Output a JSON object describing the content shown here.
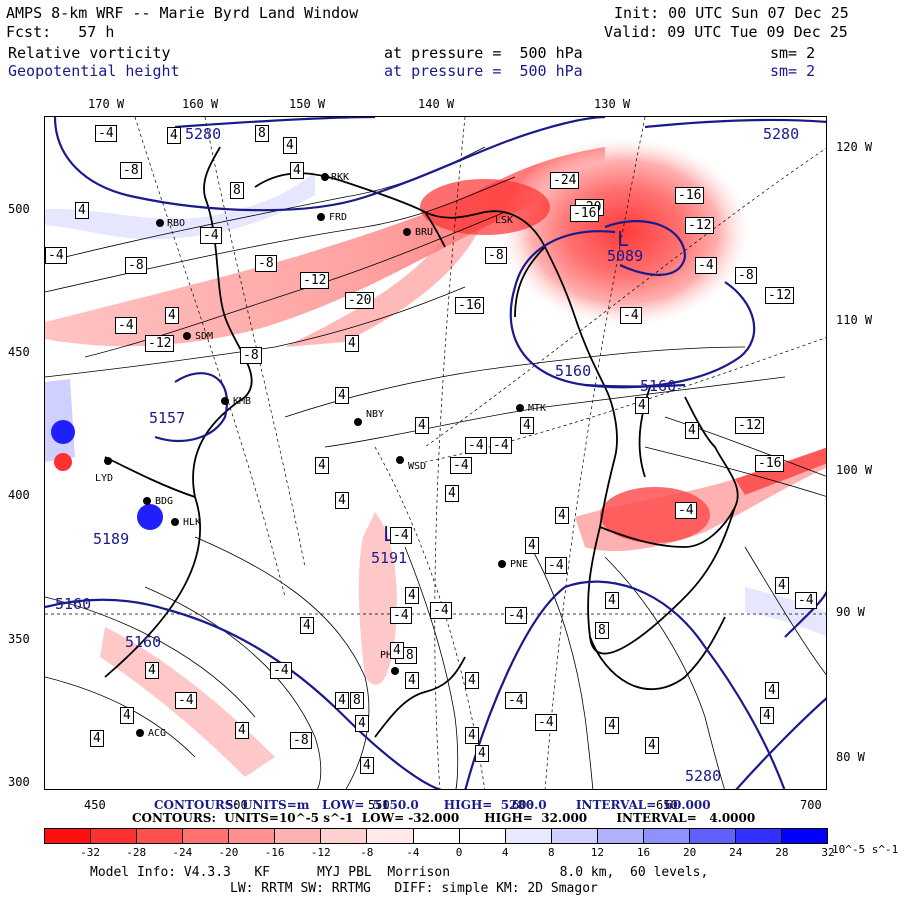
{
  "header": {
    "model_title": "AMPS 8-km WRF -- Marie Byrd Land Window",
    "init": "Init: 00 UTC Sun 07 Dec 25",
    "fcst": "Fcst:   57 h",
    "valid": "Valid: 09 UTC Tue 09 Dec 25",
    "field1": {
      "name": "Relative vorticity",
      "level": "at pressure =  500 hPa",
      "smooth": "sm= 2"
    },
    "field2": {
      "name": "Geopotential height",
      "level": "at pressure =  500 hPa",
      "smooth": "sm= 2"
    }
  },
  "axes": {
    "top_labels": [
      "170 W",
      "160 W",
      "150 W",
      "140 W",
      "130 W"
    ],
    "left_labels": [
      "500",
      "450",
      "400",
      "350",
      "300"
    ],
    "right_labels": [
      "120 W",
      "110 W",
      "100 W",
      "90 W",
      "80 W"
    ],
    "bottom_labels": [
      "450",
      "500",
      "550",
      "600",
      "650",
      "700"
    ]
  },
  "stations": [
    "RBO",
    "RKK",
    "FRD",
    "BRU",
    "LSK",
    "SDM",
    "KMB",
    "NBY",
    "MTK",
    "WSD",
    "LYD",
    "BDG",
    "HLK",
    "PNE",
    "PHI",
    "ACG"
  ],
  "map_labels": {
    "height_contours": [
      "5280",
      "5280",
      "5160",
      "5160",
      "5160",
      "5160",
      "5157",
      "5089",
      "5191",
      "5280",
      "5189"
    ],
    "lows": [
      "L",
      "L"
    ],
    "vorticity_boxes": [
      "-4",
      "4",
      "8",
      "4",
      "-8",
      "4",
      "4",
      "8",
      "4",
      "-4",
      "-8",
      "-12",
      "-4",
      "-8",
      "4",
      "-12",
      "-20",
      "-8",
      "-16",
      "-24",
      "-20",
      "-16",
      "-16",
      "-12",
      "-8",
      "-12",
      "-4",
      "-4",
      "4",
      "-8",
      "4",
      "4",
      "-4",
      "-4",
      "-4",
      "4",
      "4",
      "4",
      "-4",
      "-12",
      "-16",
      "4",
      "4",
      "-4",
      "4",
      "-4",
      "4",
      "-4",
      "-4",
      "4",
      "4",
      "8",
      "4",
      "-4",
      "4",
      "-4",
      "-8",
      "4",
      "4",
      "-4",
      "4",
      "4",
      "4",
      "4",
      "-4",
      "4",
      "4",
      "4",
      "-4",
      "-4",
      "-8",
      "4",
      "8",
      "4",
      "4",
      "4",
      "4",
      "4",
      "4",
      "-4",
      "4"
    ]
  },
  "contour_footer": {
    "height_line": "CONTOURS: UNITS=m   LOW=  5150.0      HIGH=  5280.0       INTERVAL=  60.000",
    "vort_line": "CONTOURS:  UNITS=10^-5 s^-1  LOW= -32.000      HIGH=  32.000       INTERVAL=   4.0000"
  },
  "colorbar": {
    "ticks": [
      "-32",
      "-28",
      "-24",
      "-20",
      "-16",
      "-12",
      "-8",
      "-4",
      "0",
      "4",
      "8",
      "12",
      "16",
      "20",
      "24",
      "28",
      "32"
    ],
    "unit": "10^-5 s^-1",
    "colors": [
      "#ff1010",
      "#ff3030",
      "#ff5050",
      "#ff7070",
      "#ff9090",
      "#ffb0b0",
      "#ffd0d0",
      "#ffe8e8",
      "#ffffff",
      "#ffffff",
      "#e8e8ff",
      "#d0d0ff",
      "#b0b0ff",
      "#9090ff",
      "#6060ff",
      "#3030ff",
      "#0000ff"
    ]
  },
  "footer": {
    "line1": "Model Info: V4.3.3   KF      MYJ PBL  Morrison              8.0 km,  60 levels,",
    "line2": "LW: RRTM SW: RRTMG   DIFF: simple KM: 2D Smagor"
  },
  "colors": {
    "height_contour": "#1a1a8c",
    "text_blue": "#1a1a8c",
    "coast": "#000000"
  }
}
